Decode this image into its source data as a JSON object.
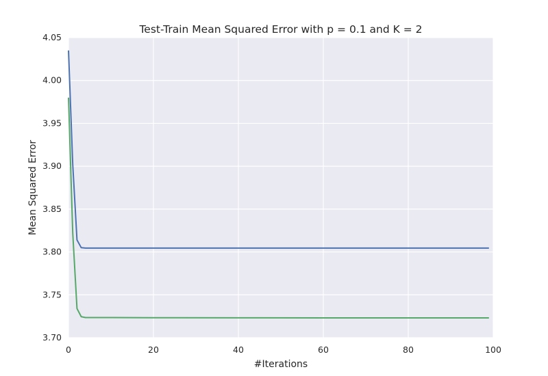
{
  "chart_data": {
    "type": "line",
    "title": "Test-Train Mean Squared Error with p = 0.1 and K = 2",
    "xlabel": "#Iterations",
    "ylabel": "Mean Squared Error",
    "xlim": [
      0,
      100
    ],
    "ylim": [
      3.7,
      4.05
    ],
    "xticks": [
      0,
      20,
      40,
      60,
      80,
      100
    ],
    "xtick_labels": [
      "0",
      "20",
      "40",
      "60",
      "80",
      "100"
    ],
    "yticks": [
      3.7,
      3.75,
      3.8,
      3.85,
      3.9,
      3.95,
      4.0,
      4.05
    ],
    "ytick_labels": [
      "3.70",
      "3.75",
      "3.80",
      "3.85",
      "3.90",
      "3.95",
      "4.00",
      "4.05"
    ],
    "grid": true,
    "legend": "none",
    "colors": {
      "plot_background": "#EAEAF2",
      "grid": "#FFFFFF",
      "series_blue": "#4C72B0",
      "series_green": "#55A868"
    },
    "series": [
      {
        "color": "#4C72B0",
        "x": [
          0,
          1,
          2,
          3,
          4,
          5,
          10,
          20,
          40,
          60,
          80,
          99
        ],
        "y": [
          4.035,
          3.902,
          3.814,
          3.805,
          3.8045,
          3.8045,
          3.8045,
          3.8045,
          3.8045,
          3.8045,
          3.8045,
          3.8045
        ]
      },
      {
        "color": "#55A868",
        "x": [
          0,
          1,
          2,
          3,
          4,
          5,
          10,
          20,
          40,
          60,
          80,
          99
        ],
        "y": [
          3.98,
          3.822,
          3.734,
          3.7245,
          3.7235,
          3.7235,
          3.7235,
          3.7233,
          3.7232,
          3.7231,
          3.7231,
          3.7231
        ]
      }
    ]
  }
}
